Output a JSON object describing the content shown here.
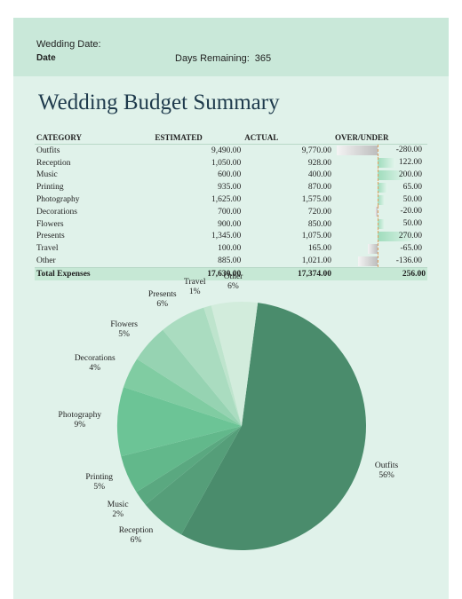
{
  "header": {
    "wedding_date_label": "Wedding Date:",
    "date_label": "Date",
    "days_remaining_label": "Days Remaining:",
    "days_remaining_value": "365"
  },
  "title": "Wedding Budget Summary",
  "table": {
    "headers": {
      "category": "CATEGORY",
      "estimated": "ESTIMATED",
      "actual": "ACTUAL",
      "over_under": "OVER/UNDER"
    },
    "rows": [
      {
        "category": "Outfits",
        "estimated": "9,490.00",
        "actual": "9,770.00",
        "over_under": "-280.00",
        "diff": -280
      },
      {
        "category": "Reception",
        "estimated": "1,050.00",
        "actual": "928.00",
        "over_under": "122.00",
        "diff": 122
      },
      {
        "category": "Music",
        "estimated": "600.00",
        "actual": "400.00",
        "over_under": "200.00",
        "diff": 200
      },
      {
        "category": "Printing",
        "estimated": "935.00",
        "actual": "870.00",
        "over_under": "65.00",
        "diff": 65
      },
      {
        "category": "Photography",
        "estimated": "1,625.00",
        "actual": "1,575.00",
        "over_under": "50.00",
        "diff": 50
      },
      {
        "category": "Decorations",
        "estimated": "700.00",
        "actual": "720.00",
        "over_under": "-20.00",
        "diff": -20
      },
      {
        "category": "Flowers",
        "estimated": "900.00",
        "actual": "850.00",
        "over_under": "50.00",
        "diff": 50
      },
      {
        "category": "Presents",
        "estimated": "1,345.00",
        "actual": "1,075.00",
        "over_under": "270.00",
        "diff": 270
      },
      {
        "category": "Travel",
        "estimated": "100.00",
        "actual": "165.00",
        "over_under": "-65.00",
        "diff": -65
      },
      {
        "category": "Other",
        "estimated": "885.00",
        "actual": "1,021.00",
        "over_under": "-136.00",
        "diff": -136
      }
    ],
    "total": {
      "label": "Total Expenses",
      "estimated": "17,630.00",
      "actual": "17,374.00",
      "over_under": "256.00"
    }
  },
  "chart_data": {
    "type": "pie",
    "slices": [
      {
        "label": "Outfits",
        "value": 56,
        "percent_label": "56%",
        "color": "#4a8c6c"
      },
      {
        "label": "Reception",
        "value": 6,
        "percent_label": "6%",
        "color": "#559e79"
      },
      {
        "label": "Music",
        "value": 2,
        "percent_label": "2%",
        "color": "#5aa880"
      },
      {
        "label": "Printing",
        "value": 5,
        "percent_label": "5%",
        "color": "#62b88b"
      },
      {
        "label": "Photography",
        "value": 9,
        "percent_label": "9%",
        "color": "#6cc496"
      },
      {
        "label": "Decorations",
        "value": 4,
        "percent_label": "4%",
        "color": "#80cca2"
      },
      {
        "label": "Flowers",
        "value": 5,
        "percent_label": "5%",
        "color": "#96d3b2"
      },
      {
        "label": "Presents",
        "value": 6,
        "percent_label": "6%",
        "color": "#aadcc0"
      },
      {
        "label": "Travel",
        "value": 1,
        "percent_label": "1%",
        "color": "#bee4cd"
      },
      {
        "label": "Other",
        "value": 6,
        "percent_label": "6%",
        "color": "#d2ecdc"
      }
    ]
  }
}
